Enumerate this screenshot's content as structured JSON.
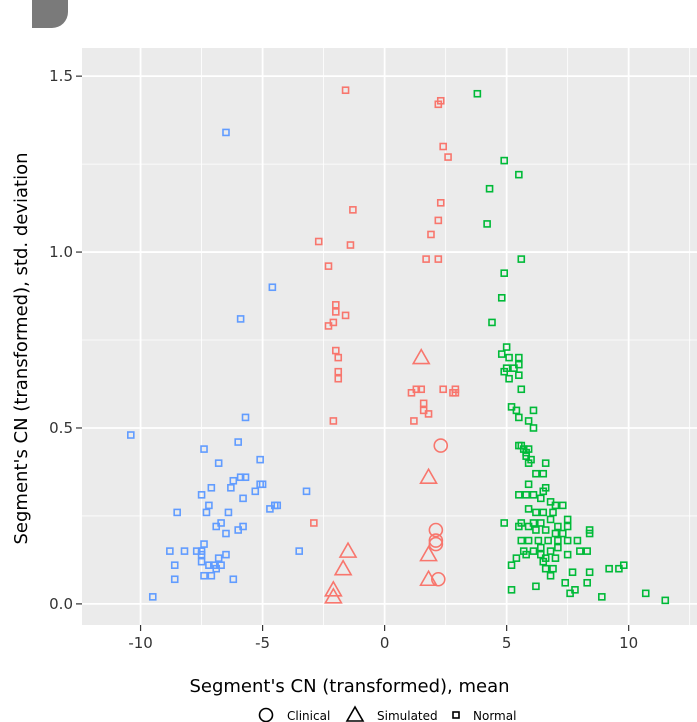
{
  "chart_data": {
    "type": "scatter",
    "title": "",
    "xlabel": "Segment's CN (transformed), mean",
    "ylabel": "Segment's CN (transformed), std. deviation",
    "xlim": [
      -12.4,
      12.8
    ],
    "ylim": [
      -0.06,
      1.58
    ],
    "x_ticks": [
      -10,
      -5,
      0,
      5,
      10
    ],
    "x_tick_labels": [
      "-10",
      "-5",
      "0",
      "5",
      "10"
    ],
    "y_ticks": [
      0.0,
      0.5,
      1.0,
      1.5
    ],
    "y_tick_labels": [
      "0.0",
      "0.5",
      "1.0",
      "1.5"
    ],
    "grid": true,
    "legend_position": "bottom",
    "legend": [
      {
        "label": "Clinical",
        "shape": "circle"
      },
      {
        "label": "Simulated",
        "shape": "triangle"
      },
      {
        "label": "Normal",
        "shape": "square"
      }
    ],
    "colors": {
      "blue": "#619CFF",
      "red": "#F8766D",
      "green": "#00BA38",
      "panel": "#EBEBEB",
      "grid": "#FFFFFF"
    },
    "series": [
      {
        "cluster": "blue",
        "shape": "square",
        "points": [
          [
            -6.5,
            1.34
          ],
          [
            -4.6,
            0.9
          ],
          [
            -5.9,
            0.81
          ],
          [
            -10.4,
            0.48
          ],
          [
            -5.7,
            0.53
          ],
          [
            -6.0,
            0.46
          ],
          [
            -7.4,
            0.44
          ],
          [
            -5.1,
            0.41
          ],
          [
            -6.8,
            0.4
          ],
          [
            -6.2,
            0.35
          ],
          [
            -5.9,
            0.36
          ],
          [
            -5.7,
            0.36
          ],
          [
            -5.1,
            0.34
          ],
          [
            -5.0,
            0.34
          ],
          [
            -5.3,
            0.32
          ],
          [
            -6.3,
            0.33
          ],
          [
            -7.1,
            0.33
          ],
          [
            -7.5,
            0.31
          ],
          [
            -5.8,
            0.3
          ],
          [
            -4.5,
            0.28
          ],
          [
            -4.4,
            0.28
          ],
          [
            -4.7,
            0.27
          ],
          [
            -3.2,
            0.32
          ],
          [
            -7.2,
            0.28
          ],
          [
            -8.5,
            0.26
          ],
          [
            -7.3,
            0.26
          ],
          [
            -6.4,
            0.26
          ],
          [
            -6.7,
            0.23
          ],
          [
            -6.9,
            0.22
          ],
          [
            -5.8,
            0.22
          ],
          [
            -6.0,
            0.21
          ],
          [
            -6.5,
            0.2
          ],
          [
            -8.8,
            0.15
          ],
          [
            -8.2,
            0.15
          ],
          [
            -7.5,
            0.15
          ],
          [
            -7.4,
            0.17
          ],
          [
            -7.5,
            0.14
          ],
          [
            -6.5,
            0.14
          ],
          [
            -6.8,
            0.13
          ],
          [
            -7.5,
            0.12
          ],
          [
            -7.2,
            0.11
          ],
          [
            -7.0,
            0.11
          ],
          [
            -6.7,
            0.11
          ],
          [
            -6.9,
            0.1
          ],
          [
            -8.6,
            0.11
          ],
          [
            -7.4,
            0.08
          ],
          [
            -7.1,
            0.08
          ],
          [
            -6.2,
            0.07
          ],
          [
            -8.6,
            0.07
          ],
          [
            -3.5,
            0.15
          ],
          [
            -9.5,
            0.02
          ],
          [
            -7.7,
            0.15
          ]
        ]
      },
      {
        "cluster": "red",
        "shape": "square",
        "points": [
          [
            -1.6,
            1.46
          ],
          [
            2.3,
            1.43
          ],
          [
            2.2,
            1.42
          ],
          [
            2.4,
            1.3
          ],
          [
            2.6,
            1.27
          ],
          [
            -1.3,
            1.12
          ],
          [
            2.3,
            1.14
          ],
          [
            2.2,
            1.09
          ],
          [
            1.9,
            1.05
          ],
          [
            -2.7,
            1.03
          ],
          [
            -1.4,
            1.02
          ],
          [
            1.7,
            0.98
          ],
          [
            2.2,
            0.98
          ],
          [
            -2.3,
            0.96
          ],
          [
            -2.0,
            0.85
          ],
          [
            -2.0,
            0.83
          ],
          [
            -1.6,
            0.82
          ],
          [
            -2.1,
            0.8
          ],
          [
            -2.3,
            0.79
          ],
          [
            -2.0,
            0.72
          ],
          [
            -1.9,
            0.7
          ],
          [
            -1.9,
            0.66
          ],
          [
            -1.9,
            0.64
          ],
          [
            1.1,
            0.6
          ],
          [
            1.3,
            0.61
          ],
          [
            1.5,
            0.61
          ],
          [
            2.4,
            0.61
          ],
          [
            2.8,
            0.6
          ],
          [
            2.9,
            0.6
          ],
          [
            2.9,
            0.61
          ],
          [
            1.6,
            0.57
          ],
          [
            1.6,
            0.55
          ],
          [
            1.8,
            0.54
          ],
          [
            -2.1,
            0.52
          ],
          [
            1.2,
            0.52
          ],
          [
            -2.9,
            0.23
          ]
        ]
      },
      {
        "cluster": "red",
        "shape": "circle",
        "points": [
          [
            2.3,
            0.45
          ],
          [
            2.1,
            0.21
          ],
          [
            2.1,
            0.18
          ],
          [
            2.1,
            0.17
          ],
          [
            2.2,
            0.07
          ]
        ]
      },
      {
        "cluster": "red",
        "shape": "triangle",
        "points": [
          [
            1.5,
            0.7
          ],
          [
            1.8,
            0.36
          ],
          [
            -1.5,
            0.15
          ],
          [
            1.8,
            0.14
          ],
          [
            -1.7,
            0.1
          ],
          [
            1.8,
            0.07
          ],
          [
            -2.1,
            0.04
          ],
          [
            -2.1,
            0.02
          ]
        ]
      },
      {
        "cluster": "green",
        "shape": "square",
        "points": [
          [
            3.8,
            1.45
          ],
          [
            4.9,
            1.26
          ],
          [
            5.5,
            1.22
          ],
          [
            4.3,
            1.18
          ],
          [
            4.2,
            1.08
          ],
          [
            5.6,
            0.98
          ],
          [
            4.9,
            0.94
          ],
          [
            4.8,
            0.87
          ],
          [
            4.4,
            0.8
          ],
          [
            5.0,
            0.73
          ],
          [
            4.8,
            0.71
          ],
          [
            5.1,
            0.7
          ],
          [
            5.5,
            0.7
          ],
          [
            5.5,
            0.68
          ],
          [
            5.0,
            0.67
          ],
          [
            5.3,
            0.67
          ],
          [
            4.9,
            0.66
          ],
          [
            5.5,
            0.65
          ],
          [
            5.1,
            0.64
          ],
          [
            5.6,
            0.61
          ],
          [
            5.2,
            0.56
          ],
          [
            5.4,
            0.55
          ],
          [
            6.1,
            0.55
          ],
          [
            5.5,
            0.53
          ],
          [
            5.9,
            0.52
          ],
          [
            6.1,
            0.5
          ],
          [
            5.5,
            0.45
          ],
          [
            5.6,
            0.45
          ],
          [
            5.7,
            0.44
          ],
          [
            5.9,
            0.44
          ],
          [
            5.8,
            0.43
          ],
          [
            5.8,
            0.42
          ],
          [
            6.0,
            0.41
          ],
          [
            5.9,
            0.4
          ],
          [
            6.6,
            0.4
          ],
          [
            6.2,
            0.37
          ],
          [
            6.5,
            0.37
          ],
          [
            5.9,
            0.34
          ],
          [
            6.6,
            0.33
          ],
          [
            6.5,
            0.32
          ],
          [
            5.5,
            0.31
          ],
          [
            5.8,
            0.31
          ],
          [
            6.1,
            0.31
          ],
          [
            6.4,
            0.3
          ],
          [
            6.8,
            0.29
          ],
          [
            7.0,
            0.28
          ],
          [
            7.3,
            0.28
          ],
          [
            5.9,
            0.27
          ],
          [
            6.2,
            0.26
          ],
          [
            6.5,
            0.26
          ],
          [
            6.9,
            0.26
          ],
          [
            4.9,
            0.23
          ],
          [
            5.6,
            0.23
          ],
          [
            5.9,
            0.22
          ],
          [
            6.1,
            0.23
          ],
          [
            6.4,
            0.23
          ],
          [
            6.8,
            0.24
          ],
          [
            7.1,
            0.22
          ],
          [
            7.5,
            0.24
          ],
          [
            7.5,
            0.22
          ],
          [
            8.4,
            0.21
          ],
          [
            8.4,
            0.2
          ],
          [
            5.5,
            0.22
          ],
          [
            6.2,
            0.21
          ],
          [
            6.6,
            0.21
          ],
          [
            7.0,
            0.2
          ],
          [
            7.3,
            0.2
          ],
          [
            5.6,
            0.18
          ],
          [
            5.9,
            0.18
          ],
          [
            6.3,
            0.18
          ],
          [
            6.7,
            0.18
          ],
          [
            7.1,
            0.18
          ],
          [
            7.5,
            0.18
          ],
          [
            7.9,
            0.18
          ],
          [
            5.7,
            0.15
          ],
          [
            6.1,
            0.15
          ],
          [
            6.4,
            0.16
          ],
          [
            6.8,
            0.15
          ],
          [
            7.1,
            0.16
          ],
          [
            7.5,
            0.14
          ],
          [
            8.0,
            0.15
          ],
          [
            8.3,
            0.15
          ],
          [
            5.4,
            0.13
          ],
          [
            5.8,
            0.14
          ],
          [
            6.4,
            0.14
          ],
          [
            6.6,
            0.13
          ],
          [
            7.0,
            0.13
          ],
          [
            5.2,
            0.11
          ],
          [
            6.5,
            0.12
          ],
          [
            6.9,
            0.1
          ],
          [
            6.6,
            0.1
          ],
          [
            7.7,
            0.09
          ],
          [
            6.8,
            0.08
          ],
          [
            8.4,
            0.09
          ],
          [
            9.2,
            0.1
          ],
          [
            9.6,
            0.1
          ],
          [
            9.8,
            0.11
          ],
          [
            8.3,
            0.06
          ],
          [
            7.4,
            0.06
          ],
          [
            6.2,
            0.05
          ],
          [
            7.8,
            0.04
          ],
          [
            7.6,
            0.03
          ],
          [
            8.9,
            0.02
          ],
          [
            10.7,
            0.03
          ],
          [
            11.5,
            0.01
          ],
          [
            5.2,
            0.04
          ]
        ]
      }
    ]
  }
}
